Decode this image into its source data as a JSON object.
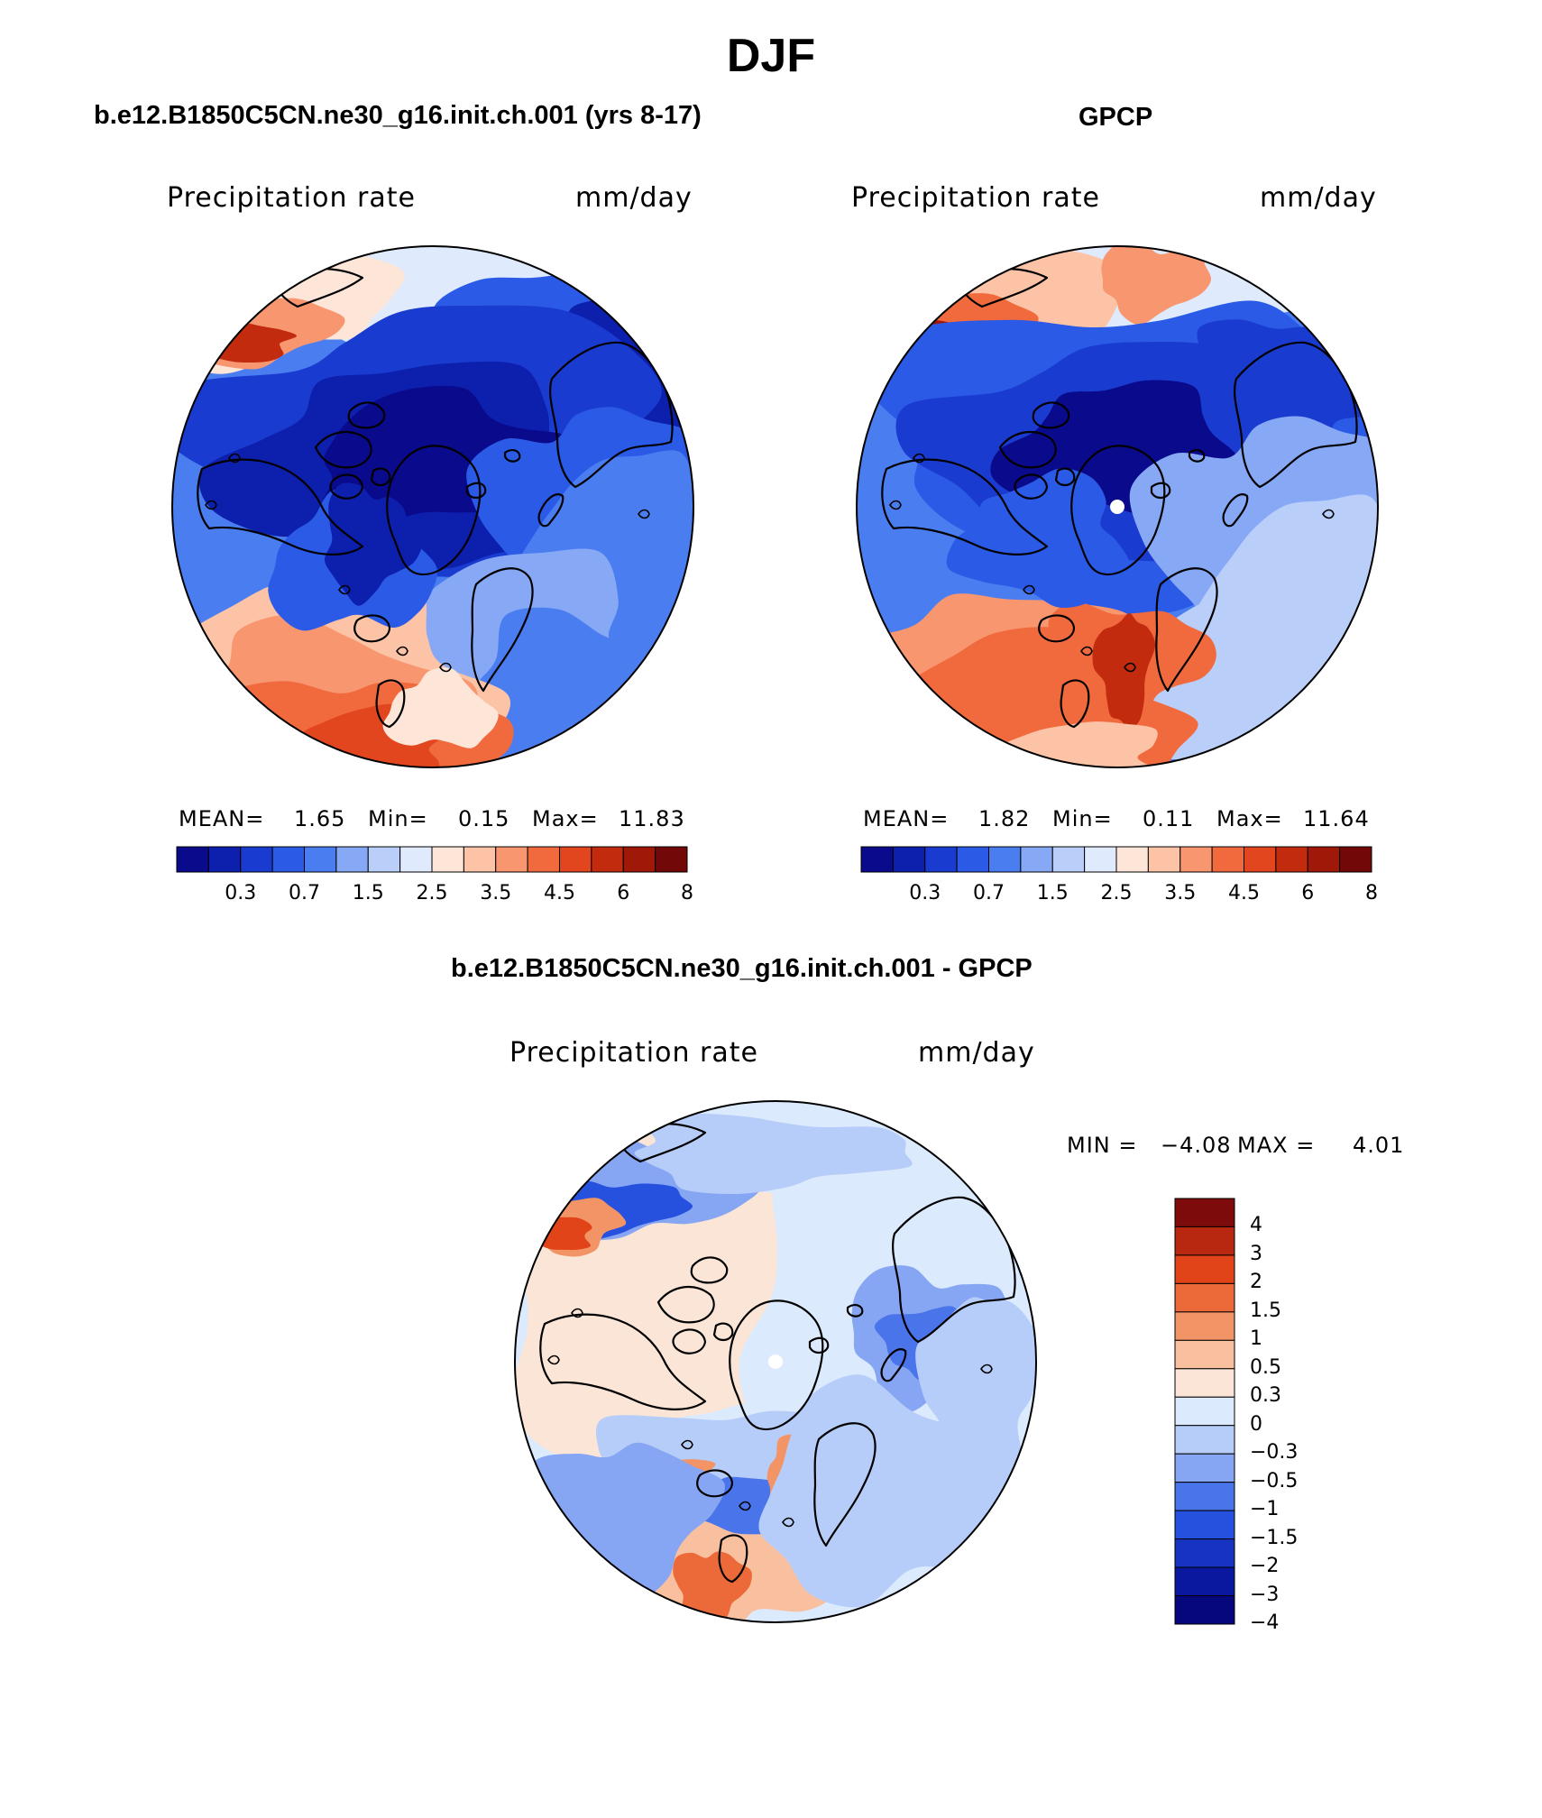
{
  "figure": {
    "season_title": "DJF",
    "colors": {
      "seq_scale": [
        "#0a0a8c",
        "#0d1fad",
        "#1a3bd0",
        "#2a5ae6",
        "#4a7ef0",
        "#86a8f5",
        "#b9cff9",
        "#dfeafd",
        "#fde6d8",
        "#fcc3a6",
        "#f7966f",
        "#f06a3e",
        "#e2461e",
        "#c32b0e",
        "#a01808",
        "#730808"
      ],
      "diff_scale": [
        "#07077d",
        "#0a18a0",
        "#1633c2",
        "#2650de",
        "#4a74ea",
        "#86a6f3",
        "#b7cdf9",
        "#dceafe",
        "#fbe5d6",
        "#f9c0a0",
        "#f39466",
        "#ec6a3a",
        "#e04418",
        "#b82710",
        "#7e0b0b"
      ],
      "coastline": "#000000",
      "missing": "#ffffff"
    }
  },
  "chart_data": [
    {
      "id": "panel-model",
      "type": "heatmap",
      "projection": "north-polar-stereographic",
      "title": "b.e12.B1850C5CN.ne30_g16.init.ch.001 (yrs 8-17)",
      "left_label": "Precipitation rate",
      "right_label": "mm/day",
      "stats": {
        "mean_label": "MEAN=",
        "mean": "1.65",
        "min_label": "Min=",
        "min": "0.15",
        "max_label": "Max=",
        "max": "11.83"
      },
      "colorbar": {
        "orientation": "horizontal",
        "levels": [
          0.2,
          0.3,
          0.5,
          0.7,
          1,
          1.5,
          2,
          2.5,
          3,
          3.5,
          4,
          4.5,
          5,
          6,
          7,
          8
        ],
        "tick_labels": [
          "0.3",
          "0.7",
          "1.5",
          "2.5",
          "3.5",
          "4.5",
          "6",
          "8"
        ],
        "units": "mm/day"
      }
    },
    {
      "id": "panel-obs",
      "type": "heatmap",
      "projection": "north-polar-stereographic",
      "title": "GPCP",
      "left_label": "Precipitation rate",
      "right_label": "mm/day",
      "stats": {
        "mean_label": "MEAN=",
        "mean": "1.82",
        "min_label": "Min=",
        "min": "0.11",
        "max_label": "Max=",
        "max": "11.64"
      },
      "colorbar": {
        "orientation": "horizontal",
        "levels": [
          0.2,
          0.3,
          0.5,
          0.7,
          1,
          1.5,
          2,
          2.5,
          3,
          3.5,
          4,
          4.5,
          5,
          6,
          7,
          8
        ],
        "tick_labels": [
          "0.3",
          "0.7",
          "1.5",
          "2.5",
          "3.5",
          "4.5",
          "6",
          "8"
        ],
        "units": "mm/day"
      }
    },
    {
      "id": "panel-diff",
      "type": "heatmap",
      "projection": "north-polar-stereographic",
      "title": "b.e12.B1850C5CN.ne30_g16.init.ch.001 - GPCP",
      "left_label": "Precipitation rate",
      "right_label": "mm/day",
      "stats": {
        "min_label": "MIN =",
        "min": "−4.08",
        "max_label": "MAX =",
        "max": "4.01"
      },
      "colorbar": {
        "orientation": "vertical",
        "tick_labels": [
          "4",
          "3",
          "2",
          "1.5",
          "1",
          "0.5",
          "0.3",
          "0",
          "−0.3",
          "−0.5",
          "−1",
          "−1.5",
          "−2",
          "−3",
          "−4"
        ],
        "units": "mm/day"
      }
    }
  ]
}
